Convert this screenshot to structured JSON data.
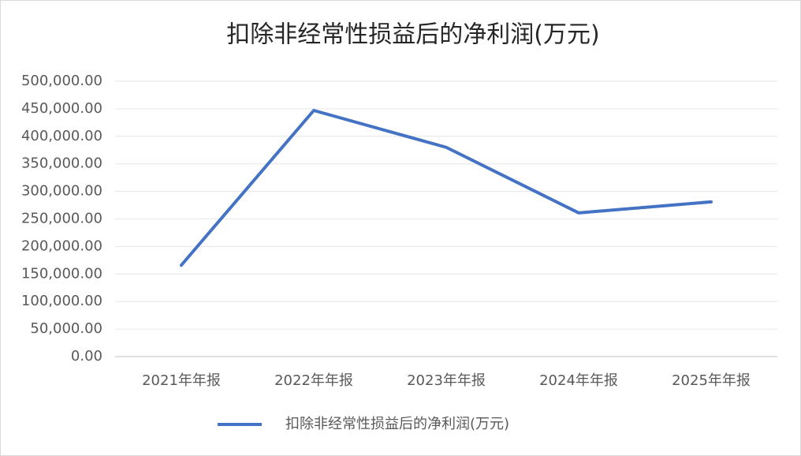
{
  "chart_data": {
    "type": "line",
    "title": "扣除非经常性损益后的净利润(万元)",
    "categories": [
      "2021年年报",
      "2022年年报",
      "2023年年报",
      "2024年年报",
      "2025年年报"
    ],
    "series": [
      {
        "name": "扣除非经常性损益后的净利润(万元)",
        "color": "#4472c4",
        "values": [
          166000,
          447000,
          380000,
          261000,
          281000
        ]
      }
    ],
    "ylim": [
      0,
      500000
    ],
    "yticks": [
      {
        "value": 0,
        "label": "0.00"
      },
      {
        "value": 50000,
        "label": "50,000.00"
      },
      {
        "value": 100000,
        "label": "100,000.00"
      },
      {
        "value": 150000,
        "label": "150,000.00"
      },
      {
        "value": 200000,
        "label": "200,000.00"
      },
      {
        "value": 250000,
        "label": "250,000.00"
      },
      {
        "value": 300000,
        "label": "300,000.00"
      },
      {
        "value": 350000,
        "label": "350,000.00"
      },
      {
        "value": 400000,
        "label": "400,000.00"
      },
      {
        "value": 450000,
        "label": "450,000.00"
      },
      {
        "value": 500000,
        "label": "500,000.00"
      }
    ],
    "grid": true,
    "legend": "bottom"
  }
}
